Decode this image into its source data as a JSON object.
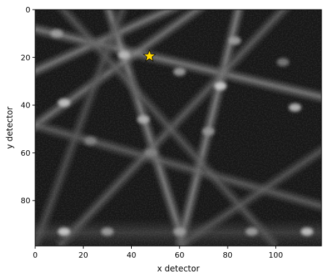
{
  "chart_data": {
    "type": "heatmap",
    "title": "",
    "xlabel": "x detector",
    "ylabel": "y detector",
    "xlim": [
      0,
      119
    ],
    "ylim": [
      99,
      0
    ],
    "xticks": [
      0,
      20,
      40,
      60,
      80,
      100
    ],
    "yticks": [
      0,
      20,
      40,
      60,
      80
    ],
    "colormap": "gray",
    "grid": false,
    "bands": [
      {
        "x1": -5,
        "y1": 28,
        "x2": 60,
        "y2": -2,
        "intensity": 0.55
      },
      {
        "x1": -5,
        "y1": 7,
        "x2": 125,
        "y2": 38,
        "intensity": 0.55
      },
      {
        "x1": 30,
        "y1": -2,
        "x2": 62,
        "y2": 99,
        "intensity": 0.6
      },
      {
        "x1": -5,
        "y1": 52,
        "x2": 70,
        "y2": -2,
        "intensity": 0.5
      },
      {
        "x1": 85,
        "y1": -2,
        "x2": 60,
        "y2": 99,
        "intensity": 0.6
      },
      {
        "x1": -5,
        "y1": 47,
        "x2": 125,
        "y2": 84,
        "intensity": 0.35
      },
      {
        "x1": 105,
        "y1": -2,
        "x2": 10,
        "y2": 99,
        "intensity": 0.35
      },
      {
        "x1": 10,
        "y1": -2,
        "x2": 100,
        "y2": 99,
        "intensity": 0.3
      },
      {
        "x1": 60,
        "y1": 99,
        "x2": 125,
        "y2": 55,
        "intensity": 0.3
      },
      {
        "x1": 37,
        "y1": -2,
        "x2": 0,
        "y2": 99,
        "intensity": 0.25
      }
    ],
    "spots": [
      {
        "x": 37,
        "y": 19,
        "intensity": 0.75
      },
      {
        "x": 77,
        "y": 32,
        "intensity": 0.85
      },
      {
        "x": 12,
        "y": 39,
        "intensity": 0.8
      },
      {
        "x": 9,
        "y": 10,
        "intensity": 0.6
      },
      {
        "x": 45,
        "y": 46,
        "intensity": 0.7
      },
      {
        "x": 60,
        "y": 26,
        "intensity": 0.6
      },
      {
        "x": 83,
        "y": 13,
        "intensity": 0.6
      },
      {
        "x": 108,
        "y": 41,
        "intensity": 0.75
      },
      {
        "x": 72,
        "y": 51,
        "intensity": 0.55
      },
      {
        "x": 23,
        "y": 55,
        "intensity": 0.45
      },
      {
        "x": 12,
        "y": 93,
        "intensity": 0.85
      },
      {
        "x": 30,
        "y": 93,
        "intensity": 0.6
      },
      {
        "x": 60,
        "y": 93,
        "intensity": 0.6
      },
      {
        "x": 90,
        "y": 93,
        "intensity": 0.6
      },
      {
        "x": 113,
        "y": 93,
        "intensity": 0.8
      },
      {
        "x": 48,
        "y": 60,
        "intensity": 0.45
      },
      {
        "x": 103,
        "y": 22,
        "intensity": 0.4
      }
    ],
    "marker": {
      "x": 47.5,
      "y": 19.5,
      "shape": "star",
      "color": "#FFD700"
    }
  }
}
